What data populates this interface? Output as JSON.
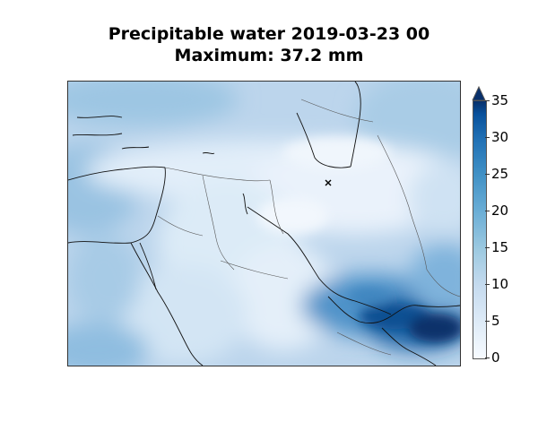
{
  "title": {
    "line1": "Precipitable water 2019-03-23 00",
    "line2": "Maximum: 37.2 mm"
  },
  "map": {
    "variable": "Precipitable water",
    "units": "mm",
    "datetime": "2019-03-23 00",
    "maximum": 37.2,
    "marker": "x",
    "cmap": "Blues",
    "colors": {
      "low": "#f7fbff",
      "mid": "#6baed6",
      "high": "#08306b",
      "coastline": "#111111",
      "border": "#555555"
    }
  },
  "colorbar": {
    "min": 0,
    "max": 35,
    "extend": "max",
    "ticks": [
      "35",
      "30",
      "25",
      "20",
      "15",
      "10",
      "5",
      "0"
    ]
  }
}
